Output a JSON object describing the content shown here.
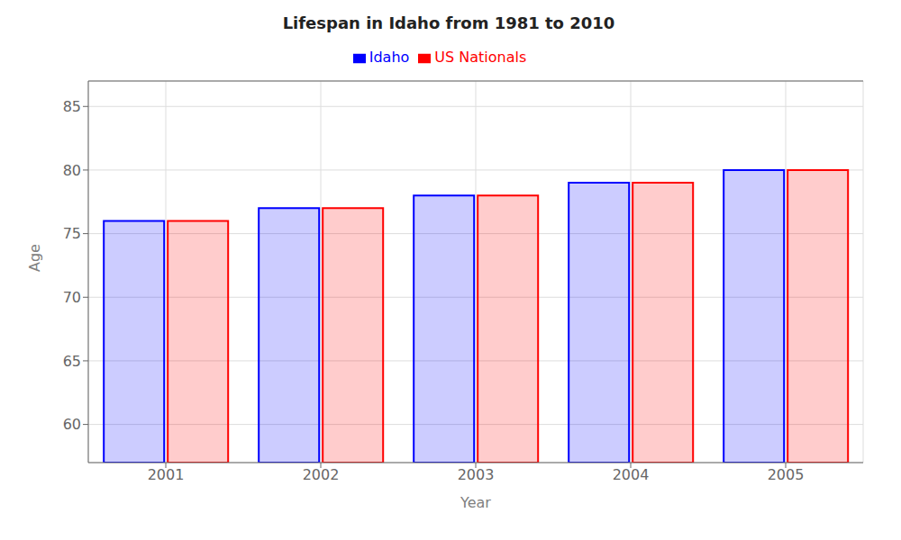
{
  "chart_data": {
    "type": "bar",
    "title": "Lifespan in Idaho from 1981 to 2010",
    "x_label": "Year",
    "y_label": "Age",
    "categories": [
      "2001",
      "2002",
      "2003",
      "2004",
      "2005"
    ],
    "series": [
      {
        "name": "Idaho",
        "color": "#0000ff",
        "values": [
          76,
          77,
          78,
          79,
          80
        ]
      },
      {
        "name": "US Nationals",
        "color": "#ff0000",
        "values": [
          76,
          77,
          78,
          79,
          80
        ]
      }
    ],
    "ylim": [
      57,
      87
    ],
    "yticks": [
      60,
      65,
      70,
      75,
      80,
      85
    ],
    "grid": true,
    "legend": "top"
  }
}
